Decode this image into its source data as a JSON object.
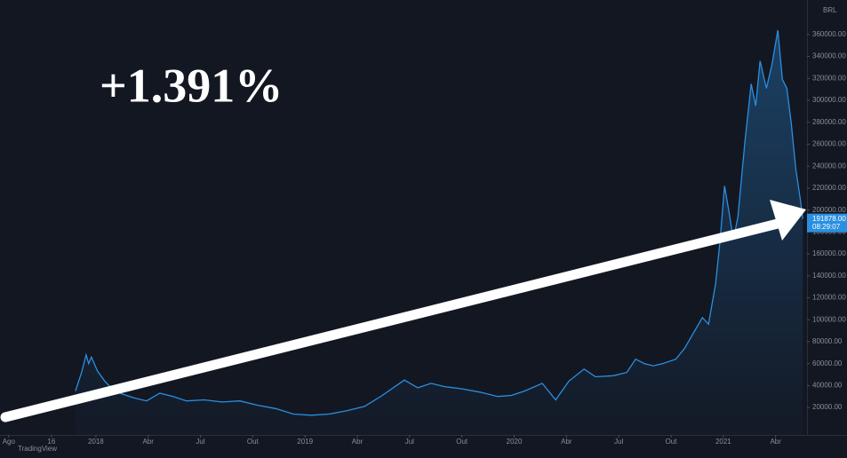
{
  "chart_data": {
    "type": "area",
    "currency": "BRL",
    "annotation": "+1.391%",
    "watermark": "TradingView",
    "last_price_label": "191878.00",
    "countdown": "08:29:07",
    "grid": false,
    "x": [
      3.83,
      4.18,
      4.44,
      4.59,
      4.74,
      5.1,
      5.51,
      5.87,
      6.38,
      7.14,
      7.91,
      8.67,
      9.44,
      10.2,
      11.22,
      12.24,
      13.27,
      14.29,
      15.31,
      16.33,
      17.35,
      18.37,
      19.39,
      20.41,
      21.43,
      22.7,
      23.47,
      24.23,
      25.0,
      26.02,
      27.04,
      28.06,
      28.83,
      29.59,
      30.61,
      31.38,
      32.14,
      33.01,
      33.67,
      34.69,
      35.46,
      35.97,
      36.48,
      36.99,
      37.5,
      38.27,
      38.78,
      39.29,
      39.8,
      40.15,
      40.56,
      40.82,
      41.07,
      41.33,
      41.58,
      41.84,
      42.24,
      42.6,
      42.86,
      43.11,
      43.47,
      43.78,
      44.13,
      44.39,
      44.64,
      44.9,
      45.15,
      45.41,
      45.56
    ],
    "series": [
      {
        "name": "BRL",
        "color": "#2a8fe0",
        "values": [
          35000,
          52000,
          68000,
          60000,
          66000,
          53000,
          44000,
          38000,
          33000,
          29000,
          26000,
          33000,
          30000,
          26000,
          27000,
          25000,
          26000,
          22000,
          19000,
          14000,
          13000,
          14000,
          17000,
          21000,
          31000,
          45000,
          38000,
          42000,
          39000,
          37000,
          34000,
          30000,
          31000,
          35000,
          42000,
          27000,
          44000,
          55000,
          48000,
          49000,
          52000,
          64000,
          60000,
          58000,
          60000,
          64000,
          74000,
          88000,
          102000,
          96000,
          133000,
          173000,
          222000,
          198000,
          173000,
          194000,
          263000,
          315000,
          295000,
          336000,
          311000,
          332000,
          364000,
          319000,
          311000,
          279000,
          238000,
          210000,
          191878
        ]
      }
    ],
    "xlim": [
      -0.5,
      45.8
    ],
    "xticks": [
      {
        "value": 0,
        "label": "Ago"
      },
      {
        "value": 2.45,
        "label": "16"
      },
      {
        "value": 5,
        "label": "2018"
      },
      {
        "value": 8,
        "label": "Abr"
      },
      {
        "value": 11,
        "label": "Jul"
      },
      {
        "value": 14,
        "label": "Out"
      },
      {
        "value": 17,
        "label": "2019"
      },
      {
        "value": 20,
        "label": "Abr"
      },
      {
        "value": 23,
        "label": "Jul"
      },
      {
        "value": 26,
        "label": "Out"
      },
      {
        "value": 29,
        "label": "2020"
      },
      {
        "value": 32,
        "label": "Abr"
      },
      {
        "value": 35,
        "label": "Jul"
      },
      {
        "value": 38,
        "label": "Out"
      },
      {
        "value": 41,
        "label": "2021"
      },
      {
        "value": 44,
        "label": "Abr"
      }
    ],
    "ylim": [
      -5000,
      385000
    ],
    "yticks": [
      {
        "value": 20000,
        "label": "20000.00"
      },
      {
        "value": 40000,
        "label": "40000.00"
      },
      {
        "value": 60000,
        "label": "60000.00"
      },
      {
        "value": 80000,
        "label": "80000.00"
      },
      {
        "value": 100000,
        "label": "100000.00"
      },
      {
        "value": 120000,
        "label": "120000.00"
      },
      {
        "value": 140000,
        "label": "140000.00"
      },
      {
        "value": 160000,
        "label": "160000.00"
      },
      {
        "value": 180000,
        "label": "180000.00"
      },
      {
        "value": 200000,
        "label": "200000.00"
      },
      {
        "value": 220000,
        "label": "220000.00"
      },
      {
        "value": 240000,
        "label": "240000.00"
      },
      {
        "value": 260000,
        "label": "260000.00"
      },
      {
        "value": 280000,
        "label": "280000.00"
      },
      {
        "value": 300000,
        "label": "300000.00"
      },
      {
        "value": 320000,
        "label": "320000.00"
      },
      {
        "value": 340000,
        "label": "340000.00"
      },
      {
        "value": 360000,
        "label": "360000.00"
      }
    ]
  }
}
